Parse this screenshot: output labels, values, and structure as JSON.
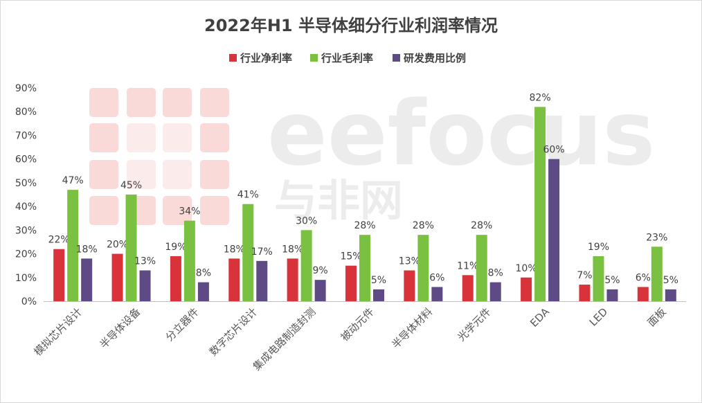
{
  "chart_data": {
    "type": "bar",
    "title": "2022年H1 半导体细分行业利润率情况",
    "categories": [
      "模拟芯片设计",
      "半导体设备",
      "分立器件",
      "数字芯片设计",
      "集成电路制造封测",
      "被动元件",
      "半导体材料",
      "光学元件",
      "EDA",
      "LED",
      "面板"
    ],
    "series": [
      {
        "name": "行业净利率",
        "color": "#d8333a",
        "values": [
          22,
          20,
          19,
          18,
          18,
          15,
          13,
          11,
          10,
          7,
          6
        ]
      },
      {
        "name": "行业毛利率",
        "color": "#7ac142",
        "values": [
          47,
          45,
          34,
          41,
          30,
          28,
          28,
          28,
          82,
          19,
          23
        ]
      },
      {
        "name": "研发费用比例",
        "color": "#5e4a84",
        "values": [
          18,
          13,
          8,
          17,
          9,
          5,
          6,
          8,
          60,
          5,
          5
        ]
      }
    ],
    "ylim": [
      0,
      90
    ],
    "yticks": [
      "0%",
      "10%",
      "20%",
      "30%",
      "40%",
      "50%",
      "60%",
      "70%",
      "80%",
      "90%"
    ],
    "value_suffix": "%",
    "legend_position": "top-center",
    "grid": false
  },
  "watermark": {
    "brand": "eefocus",
    "sub": "与非网"
  }
}
